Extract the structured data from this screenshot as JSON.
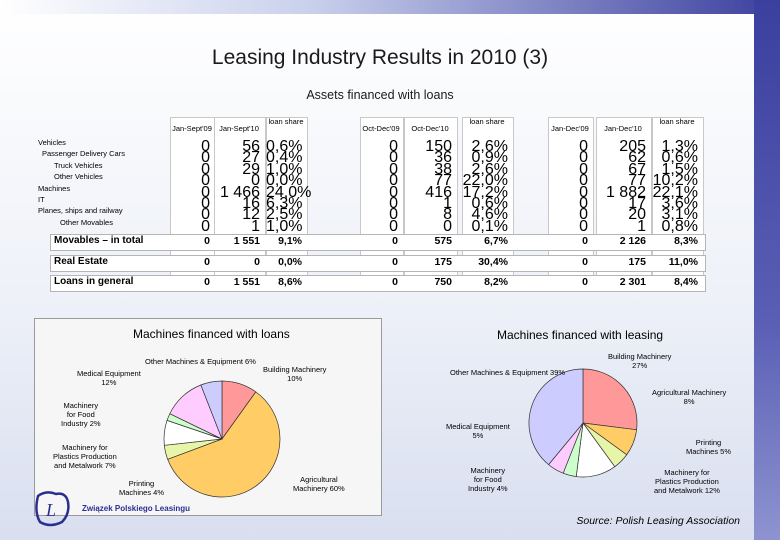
{
  "title": "Leasing Industry Results in 2010 (3)",
  "subtitle": "Assets financed with loans",
  "table": {
    "groups": [
      {
        "headers": [
          "Jan-Sept'09",
          "Jan-Sept'10",
          "loan share"
        ]
      },
      {
        "headers": [
          "Oct-Dec'09",
          "Oct-Dec'10",
          "loan share"
        ]
      },
      {
        "headers": [
          "Jan-Dec'09",
          "Jan-Dec'10",
          "loan share"
        ]
      }
    ],
    "rows": [
      {
        "label": "Vehicles",
        "vals": [
          "0",
          "56",
          "0,6%",
          "0",
          "150",
          "2,6%",
          "0",
          "205",
          "1,3%"
        ]
      },
      {
        "label": "Passenger Delivery Cars",
        "vals": [
          "0",
          "27",
          "0,4%",
          "0",
          "36",
          "0,9%",
          "0",
          "62",
          "0,6%"
        ]
      },
      {
        "label": "Truck Vehicles",
        "vals": [
          "0",
          "29",
          "1,0%",
          "0",
          "38",
          "2,6%",
          "0",
          "67",
          "1,5%"
        ]
      },
      {
        "label": "Other Vehicles",
        "vals": [
          "0",
          "0",
          "0,0%",
          "0",
          "77",
          "22,0%",
          "0",
          "77",
          "10,2%"
        ]
      },
      {
        "label": "Machines",
        "vals": [
          "0",
          "1 466",
          "24,0%",
          "0",
          "416",
          "17,2%",
          "0",
          "1 882",
          "22,1%"
        ]
      },
      {
        "label": "IT",
        "vals": [
          "0",
          "16",
          "6,3%",
          "0",
          "1",
          "0,6%",
          "0",
          "17",
          "3,6%"
        ]
      },
      {
        "label": "Planes, ships and railway",
        "vals": [
          "0",
          "12",
          "2,5%",
          "0",
          "8",
          "4,6%",
          "0",
          "20",
          "3,1%"
        ]
      },
      {
        "label": "Other Movables",
        "vals": [
          "0",
          "1",
          "1,0%",
          "0",
          "0",
          "0,1%",
          "0",
          "1",
          "0,8%"
        ]
      }
    ],
    "totals": [
      {
        "label": "Movables – in total",
        "vals": [
          "0",
          "1 551",
          "9,1%",
          "0",
          "575",
          "6,7%",
          "0",
          "2 126",
          "8,3%"
        ]
      },
      {
        "label": "Real Estate",
        "vals": [
          "0",
          "0",
          "0,0%",
          "0",
          "175",
          "30,4%",
          "0",
          "175",
          "11,0%"
        ]
      },
      {
        "label": "Loans in general",
        "vals": [
          "0",
          "1 551",
          "8,6%",
          "0",
          "750",
          "8,2%",
          "0",
          "2 301",
          "8,4%"
        ]
      }
    ]
  },
  "chart_data": [
    {
      "type": "pie",
      "title": "Machines financed with loans",
      "slices": [
        {
          "label": "Building Machinery 10%",
          "value": 10,
          "color": "#ff9999"
        },
        {
          "label": "Agricultural Machinery 60%",
          "value": 60,
          "color": "#ffcc66"
        },
        {
          "label": "Printing Machines 4%",
          "value": 4,
          "color": "#e6f5a8"
        },
        {
          "label": "Machinery for Plastics Production and Metalwork 7%",
          "value": 7,
          "color": "#ffffff"
        },
        {
          "label": "Machinery for Food Industry 2%",
          "value": 2,
          "color": "#ccffcc"
        },
        {
          "label": "Medical Equipment 12%",
          "value": 12,
          "color": "#ffccff"
        },
        {
          "label": "Other Machines & Equipment 6%",
          "value": 6,
          "color": "#ccccff"
        }
      ]
    },
    {
      "type": "pie",
      "title": "Machines financed with leasing",
      "slices": [
        {
          "label": "Building Machinery 27%",
          "value": 27,
          "color": "#ff9999"
        },
        {
          "label": "Agricultural Machinery 8%",
          "value": 8,
          "color": "#ffcc66"
        },
        {
          "label": "Printing Machines 5%",
          "value": 5,
          "color": "#e6f5a8"
        },
        {
          "label": "Machinery for Plastics Production and Metalwork 12%",
          "value": 12,
          "color": "#ffffff"
        },
        {
          "label": "Machinery for Food Industry 4%",
          "value": 4,
          "color": "#ccffcc"
        },
        {
          "label": "Medical Equipment 5%",
          "value": 5,
          "color": "#ffccff"
        },
        {
          "label": "Other Machines & Equipment 39%",
          "value": 39,
          "color": "#ccccff"
        }
      ]
    }
  ],
  "pie_labels": {
    "left": {
      "other": "Other Machines & Equipment 6%",
      "building": [
        "Building Machinery",
        "10%"
      ],
      "medical": [
        "Medical Equipment",
        "12%"
      ],
      "food": [
        "Machinery",
        "for Food",
        "Industry 2%"
      ],
      "plastics": [
        "Machinery for",
        "Plastics Production",
        "and Metalwork 7%"
      ],
      "printing": [
        "Printing",
        "Machines 4%"
      ],
      "agri": [
        "Agricultural",
        "Machinery 60%"
      ]
    },
    "right": {
      "building": [
        "Building Machinery",
        "27%"
      ],
      "other": "Other Machines & Equipment 39%",
      "agri": [
        "Agricultural Machinery",
        "8%"
      ],
      "medical": [
        "Medical Equipment",
        "5%"
      ],
      "printing": [
        "Printing",
        "Machines 5%"
      ],
      "food": [
        "Machinery",
        "for Food",
        "Industry 4%"
      ],
      "plastics": [
        "Machinery for",
        "Plastics Production",
        "and Metalwork 12%"
      ]
    }
  },
  "logo_text": "Związek Polskiego Leasingu",
  "source": "Source: Polish Leasing Association"
}
